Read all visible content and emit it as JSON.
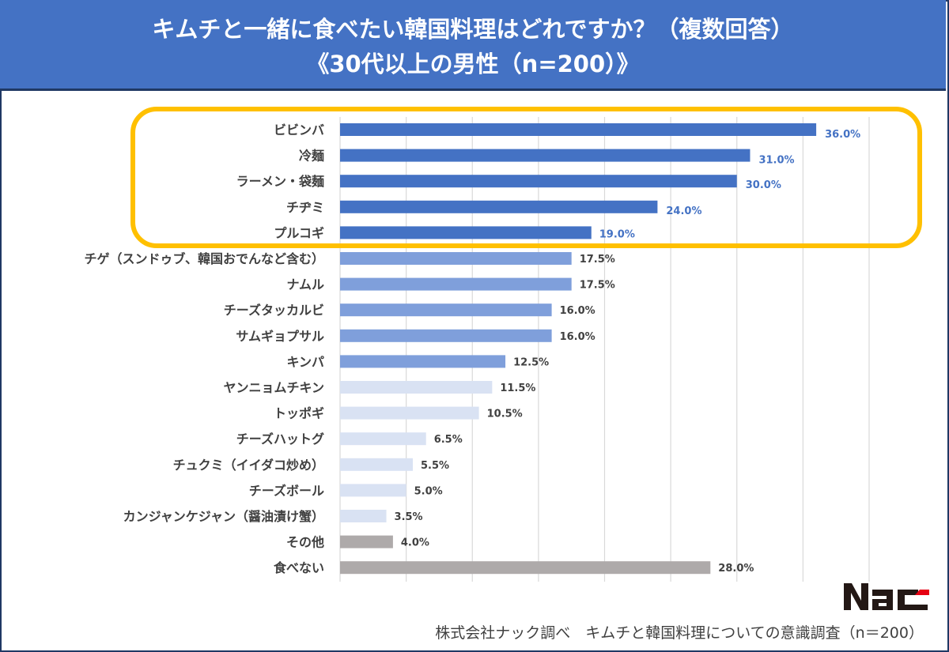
{
  "header": {
    "title_line1": "キムチと一緒に食べたい韓国料理はどれですか？（複数回答）",
    "title_line2": "《30代以上の男性（n=200）》"
  },
  "footer": {
    "source": "株式会社ナック調べ　キムチと韓国料理についての意識調査（n＝200）",
    "logo_text": "Nac"
  },
  "colors": {
    "header_bg": "#4472c4",
    "frame": "#1f3864",
    "highlight_box": "#ffc000",
    "bar_top": "#4472c4",
    "bar_mid": "#7f9fdb",
    "bar_light": "#d9e2f3",
    "bar_other": "#aeaaaa",
    "gridline": "#d9d9d9"
  },
  "chart_data": {
    "type": "bar",
    "orientation": "horizontal",
    "title": "キムチと一緒に食べたい韓国料理はどれですか？（複数回答）《30代以上の男性（n=200）》",
    "xlabel": "",
    "ylabel": "",
    "xlim": [
      0,
      40
    ],
    "grid_step": 5,
    "grid": true,
    "unit": "%",
    "highlight_note": "Top 5 items enclosed in a yellow rounded box",
    "categories": [
      "ビビンバ",
      "冷麺",
      "ラーメン・袋麺",
      "チヂミ",
      "プルコギ",
      "チゲ（スンドゥブ、韓国おでんなど含む）",
      "ナムル",
      "チーズタッカルビ",
      "サムギョプサル",
      "キンパ",
      "ヤンニョムチキン",
      "トッポギ",
      "チーズハットグ",
      "チュクミ（イイダコ炒め）",
      "チーズボール",
      "カンジャンケジャン（醤油漬け蟹）",
      "その他",
      "食べない"
    ],
    "values": [
      36.0,
      31.0,
      30.0,
      24.0,
      19.0,
      17.5,
      17.5,
      16.0,
      16.0,
      12.5,
      11.5,
      10.5,
      6.5,
      5.5,
      5.0,
      3.5,
      4.0,
      28.0
    ],
    "value_labels": [
      "36.0%",
      "31.0%",
      "30.0%",
      "24.0%",
      "19.0%",
      "17.5%",
      "17.5%",
      "16.0%",
      "16.0%",
      "12.5%",
      "11.5%",
      "10.5%",
      "6.5%",
      "5.5%",
      "5.0%",
      "3.5%",
      "4.0%",
      "28.0%"
    ],
    "tiers": [
      "top",
      "top",
      "top",
      "top",
      "top",
      "mid",
      "mid",
      "mid",
      "mid",
      "mid",
      "light",
      "light",
      "light",
      "light",
      "light",
      "light",
      "other",
      "other"
    ],
    "label_emphasis": [
      "large",
      "large",
      "medium",
      "medium",
      "normal-blue",
      "normal",
      "normal",
      "normal",
      "normal",
      "normal",
      "normal",
      "normal",
      "normal",
      "normal",
      "normal",
      "normal",
      "normal",
      "normal"
    ]
  }
}
